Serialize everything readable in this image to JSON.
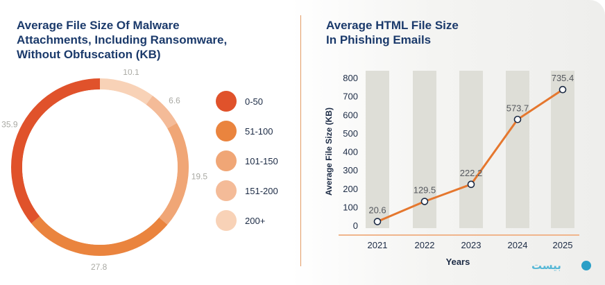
{
  "colors": {
    "title": "#1b3a6b",
    "accent": "#e5772e",
    "bars": "#deded7",
    "divider": "#e39a63"
  },
  "left": {
    "title": "Average File Size Of Malware\nAttachments, Including Ransomware,\nWithout Obfuscation (KB)"
  },
  "right": {
    "title": "Average HTML File Size\nIn Phishing Emails"
  },
  "logo": {
    "text": "بیست"
  },
  "chart_data": [
    {
      "type": "pie",
      "donut": true,
      "slices": [
        {
          "label": "0-50",
          "value": 35.9,
          "value_label": "35.9",
          "color": "#e0522b"
        },
        {
          "label": "51-100",
          "value": 27.8,
          "value_label": "27.8",
          "color": "#ea843e"
        },
        {
          "label": "101-150",
          "value": 19.5,
          "value_label": "19.5",
          "color": "#f0a676"
        },
        {
          "label": "151-200",
          "value": 6.6,
          "value_label": "6.6",
          "color": "#f4bb98"
        },
        {
          "label": "200+",
          "value": 10.1,
          "value_label": "10.1",
          "color": "#f8d2b7"
        }
      ],
      "legend_position": "right"
    },
    {
      "type": "line",
      "title": "Average HTML File Size In Phishing Emails",
      "xlabel": "Years",
      "ylabel": "Average File Size (KB)",
      "x": [
        "2021",
        "2022",
        "2023",
        "2024",
        "2025"
      ],
      "series": [
        {
          "values": [
            20.6,
            129.5,
            222.2,
            573.7,
            735.4
          ],
          "labels": [
            "20.6",
            "129.5",
            "222.2",
            "573.7",
            "735.4"
          ]
        }
      ],
      "ylim": [
        0,
        800
      ],
      "yticks": [
        "0",
        "100",
        "200",
        "300",
        "400",
        "500",
        "600",
        "700",
        "800"
      ],
      "grid": false,
      "column_bands": true
    }
  ]
}
